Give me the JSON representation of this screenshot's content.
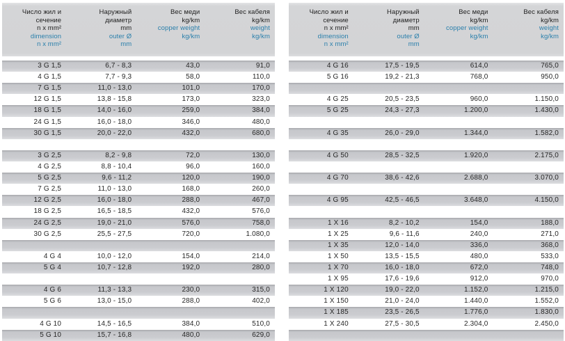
{
  "colors": {
    "page_background": "#ffffff",
    "header_background": "#d4d5d7",
    "row_gray_top": "#a6a7ab",
    "row_gray_bottom": "#dcdde0",
    "blue_text": "#2a7fab",
    "black_text": "#1e1e1e"
  },
  "header": {
    "columns": [
      {
        "name": "dimension",
        "black": [
          "Число жил и",
          "сечение",
          "n x mm²"
        ],
        "blue": [
          "dimension",
          "n x mm²"
        ]
      },
      {
        "name": "outer-diameter",
        "black": [
          "Наружный",
          "диаметр",
          "mm"
        ],
        "blue": [
          "outer Ø",
          "mm"
        ]
      },
      {
        "name": "copper-weight",
        "black": [
          "Вес меди",
          "kg/km"
        ],
        "blue": [
          "copper weight",
          "kg/km"
        ]
      },
      {
        "name": "cable-weight",
        "black": [
          "Вес кабеля",
          "kg/km"
        ],
        "blue": [
          "weight",
          "kg/km"
        ]
      }
    ]
  },
  "tables": {
    "left": {
      "rows": [
        [
          "3 G 1,5",
          "6,7 - 8,3",
          "43,0",
          "91,0"
        ],
        [
          "4 G 1,5",
          "7,7 - 9,3",
          "58,0",
          "110,0"
        ],
        [
          "7 G 1,5",
          "11,0 - 13,0",
          "101,0",
          "170,0"
        ],
        [
          "12 G 1,5",
          "13,8 - 15,8",
          "173,0",
          "323,0"
        ],
        [
          "18 G 1,5",
          "14,0 - 16,0",
          "259,0",
          "384,0"
        ],
        [
          "24 G 1,5",
          "16,0 - 18,0",
          "346,0",
          "480,0"
        ],
        [
          "30 G 1,5",
          "20,0 - 22,0",
          "432,0",
          "680,0"
        ],
        [
          "",
          "",
          "",
          ""
        ],
        [
          "3 G 2,5",
          "8,2 - 9,8",
          "72,0",
          "130,0"
        ],
        [
          "4 G 2,5",
          "8,8 - 10,4",
          "96,0",
          "160,0"
        ],
        [
          "5 G 2,5",
          "9,6 - 11,2",
          "120,0",
          "190,0"
        ],
        [
          "7 G 2,5",
          "11,0 - 13,0",
          "168,0",
          "260,0"
        ],
        [
          "12 G 2,5",
          "16,0 - 18,0",
          "288,0",
          "467,0"
        ],
        [
          "18 G 2,5",
          "16,5 - 18,5",
          "432,0",
          "576,0"
        ],
        [
          "24 G 2,5",
          "19,0 - 21,0",
          "576,0",
          "758,0"
        ],
        [
          "30 G 2,5",
          "25,5 - 27,5",
          "720,0",
          "1.080,0"
        ],
        [
          "",
          "",
          "",
          ""
        ],
        [
          "4 G 4",
          "10,0 - 12,0",
          "154,0",
          "214,0"
        ],
        [
          "5 G 4",
          "10,7 - 12,8",
          "192,0",
          "280,0"
        ],
        [
          "",
          "",
          "",
          ""
        ],
        [
          "4 G 6",
          "11,3 - 13,3",
          "230,0",
          "315,0"
        ],
        [
          "5 G 6",
          "13,0 - 15,0",
          "288,0",
          "402,0"
        ],
        [
          "",
          "",
          "",
          ""
        ],
        [
          "4 G 10",
          "14,5 - 16,5",
          "384,0",
          "510,0"
        ],
        [
          "5 G 10",
          "15,7 - 16,8",
          "480,0",
          "629,0"
        ]
      ]
    },
    "right": {
      "rows": [
        [
          "4 G 16",
          "17,5 - 19,5",
          "614,0",
          "765,0"
        ],
        [
          "5 G 16",
          "19,2 - 21,3",
          "768,0",
          "950,0"
        ],
        [
          "",
          "",
          "",
          ""
        ],
        [
          "4 G 25",
          "20,5 - 23,5",
          "960,0",
          "1.150,0"
        ],
        [
          "5 G 25",
          "24,3 - 27,3",
          "1.200,0",
          "1.430,0"
        ],
        [
          "",
          "",
          "",
          ""
        ],
        [
          "4 G 35",
          "26,0 - 29,0",
          "1.344,0",
          "1.582,0"
        ],
        [
          "",
          "",
          "",
          ""
        ],
        [
          "4 G 50",
          "28,5 - 32,5",
          "1.920,0",
          "2.175,0"
        ],
        [
          "",
          "",
          "",
          ""
        ],
        [
          "4 G 70",
          "38,6 - 42,6",
          "2.688,0",
          "3.070,0"
        ],
        [
          "",
          "",
          "",
          ""
        ],
        [
          "4 G 95",
          "42,5 - 46,5",
          "3.648,0",
          "4.150,0"
        ],
        [
          "",
          "",
          "",
          ""
        ],
        [
          "1 X 16",
          "8,2 - 10,2",
          "154,0",
          "188,0"
        ],
        [
          "1 X 25",
          "9,6 - 11,6",
          "240,0",
          "271,0"
        ],
        [
          "1 X 35",
          "12,0 - 14,0",
          "336,0",
          "368,0"
        ],
        [
          "1 X 50",
          "13,5 - 15,5",
          "480,0",
          "533,0"
        ],
        [
          "1 X 70",
          "16,0 - 18,0",
          "672,0",
          "748,0"
        ],
        [
          "1 X 95",
          "17,6 - 19,6",
          "912,0",
          "970,0"
        ],
        [
          "1 X 120",
          "19,0 - 22,0",
          "1.152,0",
          "1.215,0"
        ],
        [
          "1 X 150",
          "21,0 - 24,0",
          "1.440,0",
          "1.552,0"
        ],
        [
          "1 X 185",
          "23,5 - 26,5",
          "1.776,0",
          "1.830,0"
        ],
        [
          "1 X 240",
          "27,5 - 30,5",
          "2.304,0",
          "2.450,0"
        ],
        [
          "",
          "",
          "",
          ""
        ]
      ]
    }
  }
}
